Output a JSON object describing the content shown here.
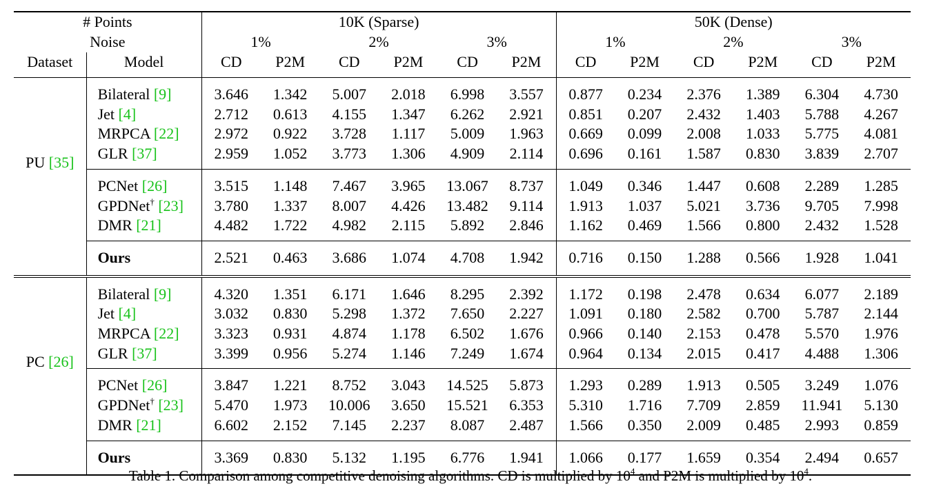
{
  "header": {
    "points_label": "# Points",
    "noise_label": "Noise",
    "dataset_label": "Dataset",
    "model_label": "Model",
    "sparse_label": "10K (Sparse)",
    "dense_label": "50K (Dense)",
    "noise_levels": [
      "1%",
      "2%",
      "3%"
    ],
    "metrics": [
      "CD",
      "P2M"
    ]
  },
  "sections": [
    {
      "dataset": "PU",
      "dataset_cite": "[35]",
      "groups": [
        {
          "rows": [
            {
              "model": "Bilateral",
              "cite": "[9]",
              "dagger": false,
              "values": [
                "3.646",
                "1.342",
                "5.007",
                "2.018",
                "6.998",
                "3.557",
                "0.877",
                "0.234",
                "2.376",
                "1.389",
                "6.304",
                "4.730"
              ],
              "bold": []
            },
            {
              "model": "Jet",
              "cite": "[4]",
              "dagger": false,
              "values": [
                "2.712",
                "0.613",
                "4.155",
                "1.347",
                "6.262",
                "2.921",
                "0.851",
                "0.207",
                "2.432",
                "1.403",
                "5.788",
                "4.267"
              ],
              "bold": []
            },
            {
              "model": "MRPCA",
              "cite": "[22]",
              "dagger": false,
              "values": [
                "2.972",
                "0.922",
                "3.728",
                "1.117",
                "5.009",
                "1.963",
                "0.669",
                "0.099",
                "2.008",
                "1.033",
                "5.775",
                "4.081"
              ],
              "bold": [
                6,
                7
              ]
            },
            {
              "model": "GLR",
              "cite": "[37]",
              "dagger": false,
              "values": [
                "2.959",
                "1.052",
                "3.773",
                "1.306",
                "4.909",
                "2.114",
                "0.696",
                "0.161",
                "1.587",
                "0.830",
                "3.839",
                "2.707"
              ],
              "bold": []
            }
          ]
        },
        {
          "rows": [
            {
              "model": "PCNet",
              "cite": "[26]",
              "dagger": false,
              "values": [
                "3.515",
                "1.148",
                "7.467",
                "3.965",
                "13.067",
                "8.737",
                "1.049",
                "0.346",
                "1.447",
                "0.608",
                "2.289",
                "1.285"
              ],
              "bold": []
            },
            {
              "model": "GPDNet",
              "cite": "[23]",
              "dagger": true,
              "values": [
                "3.780",
                "1.337",
                "8.007",
                "4.426",
                "13.482",
                "9.114",
                "1.913",
                "1.037",
                "5.021",
                "3.736",
                "9.705",
                "7.998"
              ],
              "bold": []
            },
            {
              "model": "DMR",
              "cite": "[21]",
              "dagger": false,
              "values": [
                "4.482",
                "1.722",
                "4.982",
                "2.115",
                "5.892",
                "2.846",
                "1.162",
                "0.469",
                "1.566",
                "0.800",
                "2.432",
                "1.528"
              ],
              "bold": []
            }
          ]
        }
      ],
      "ours": {
        "model": "Ours",
        "values": [
          "2.521",
          "0.463",
          "3.686",
          "1.074",
          "4.708",
          "1.942",
          "0.716",
          "0.150",
          "1.288",
          "0.566",
          "1.928",
          "1.041"
        ]
      }
    },
    {
      "dataset": "PC",
      "dataset_cite": "[26]",
      "groups": [
        {
          "rows": [
            {
              "model": "Bilateral",
              "cite": "[9]",
              "dagger": false,
              "values": [
                "4.320",
                "1.351",
                "6.171",
                "1.646",
                "8.295",
                "2.392",
                "1.172",
                "0.198",
                "2.478",
                "0.634",
                "6.077",
                "2.189"
              ],
              "bold": []
            },
            {
              "model": "Jet",
              "cite": "[4]",
              "dagger": false,
              "values": [
                "3.032",
                "0.830",
                "5.298",
                "1.372",
                "7.650",
                "2.227",
                "1.091",
                "0.180",
                "2.582",
                "0.700",
                "5.787",
                "2.144"
              ],
              "bold": [
                0,
                1
              ]
            },
            {
              "model": "MRPCA",
              "cite": "[22]",
              "dagger": false,
              "values": [
                "3.323",
                "0.931",
                "4.874",
                "1.178",
                "6.502",
                "1.676",
                "0.966",
                "0.140",
                "2.153",
                "0.478",
                "5.570",
                "1.976"
              ],
              "bold": [
                2,
                4
              ]
            },
            {
              "model": "GLR",
              "cite": "[37]",
              "dagger": false,
              "values": [
                "3.399",
                "0.956",
                "5.274",
                "1.146",
                "7.249",
                "1.674",
                "0.964",
                "0.134",
                "2.015",
                "0.417",
                "4.488",
                "1.306"
              ],
              "bold": [
                3,
                5,
                6,
                7
              ]
            }
          ]
        },
        {
          "rows": [
            {
              "model": "PCNet",
              "cite": "[26]",
              "dagger": false,
              "values": [
                "3.847",
                "1.221",
                "8.752",
                "3.043",
                "14.525",
                "5.873",
                "1.293",
                "0.289",
                "1.913",
                "0.505",
                "3.249",
                "1.076"
              ],
              "bold": []
            },
            {
              "model": "GPDNet",
              "cite": "[23]",
              "dagger": true,
              "values": [
                "5.470",
                "1.973",
                "10.006",
                "3.650",
                "15.521",
                "6.353",
                "5.310",
                "1.716",
                "7.709",
                "2.859",
                "11.941",
                "5.130"
              ],
              "bold": []
            },
            {
              "model": "DMR",
              "cite": "[21]",
              "dagger": false,
              "values": [
                "6.602",
                "2.152",
                "7.145",
                "2.237",
                "8.087",
                "2.487",
                "1.566",
                "0.350",
                "2.009",
                "0.485",
                "2.993",
                "0.859"
              ],
              "bold": []
            }
          ]
        }
      ],
      "ours": {
        "model": "Ours",
        "values": [
          "3.369",
          "0.830",
          "5.132",
          "1.195",
          "6.776",
          "1.941",
          "1.066",
          "0.177",
          "1.659",
          "0.354",
          "2.494",
          "0.657"
        ]
      }
    }
  ],
  "caption": {
    "part1": "Table 1. Comparison among competitive denoising algorithms. CD is multiplied by ",
    "base1": "10",
    "exp1": "4",
    "part2": " and P2M is multiplied by ",
    "base2": "10",
    "exp2": "4",
    "part3": "."
  },
  "colors": {
    "citation": "#18c21a",
    "text": "#000000",
    "background": "#ffffff"
  }
}
